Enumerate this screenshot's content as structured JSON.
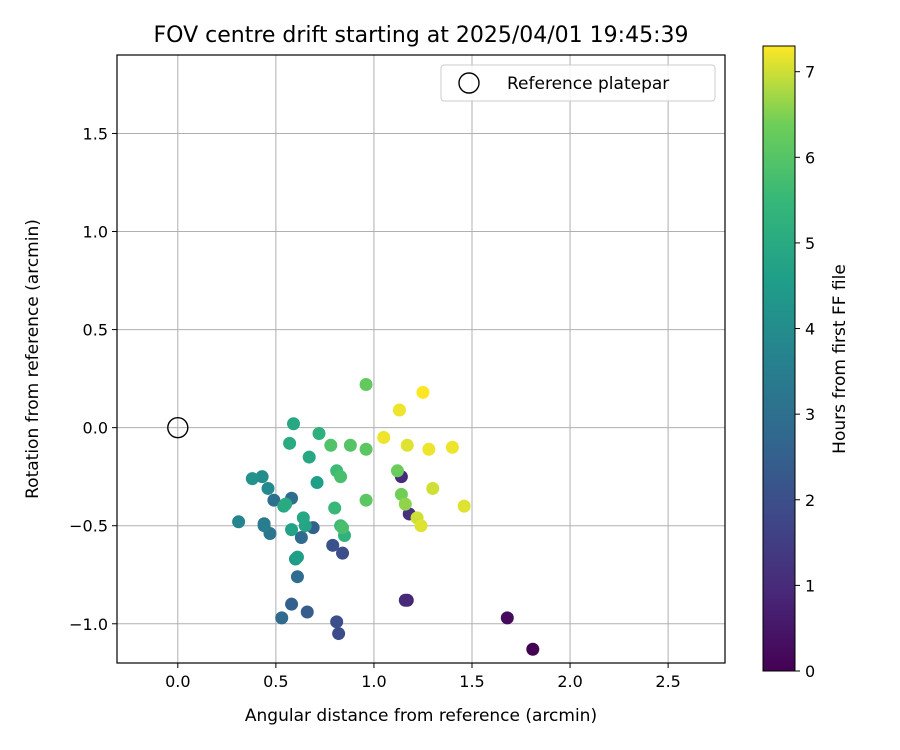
{
  "chart_data": {
    "type": "scatter",
    "title": "FOV centre drift starting at 2025/04/01 19:45:39",
    "xlabel": "Angular distance from reference (arcmin)",
    "ylabel": "Rotation from reference (arcmin)",
    "xlim": [
      -0.31,
      2.79
    ],
    "ylim": [
      -1.2,
      1.9
    ],
    "xticks": [
      0.0,
      0.5,
      1.0,
      1.5,
      2.0,
      2.5
    ],
    "xtick_labels": [
      "0.0",
      "0.5",
      "1.0",
      "1.5",
      "2.0",
      "2.5"
    ],
    "yticks": [
      -1.0,
      -0.5,
      0.0,
      0.5,
      1.0,
      1.5
    ],
    "ytick_labels": [
      "−1.0",
      "−0.5",
      "0.0",
      "0.5",
      "1.0",
      "1.5"
    ],
    "grid": true,
    "legend": {
      "placement": "top-right",
      "entries": [
        "Reference platepar"
      ]
    },
    "reference_point": {
      "x": 0.0,
      "y": 0.0
    },
    "colorbar": {
      "label": "Hours from first FF file",
      "colormap": "viridis",
      "range": [
        0,
        7.3
      ],
      "ticks": [
        0,
        1,
        2,
        3,
        4,
        5,
        6,
        7
      ],
      "tick_labels": [
        "0",
        "1",
        "2",
        "3",
        "4",
        "5",
        "6",
        "7"
      ]
    },
    "points": [
      {
        "x": 1.81,
        "y": -1.13,
        "hours": 0.0
      },
      {
        "x": 1.68,
        "y": -0.97,
        "hours": 0.2
      },
      {
        "x": 1.17,
        "y": -0.88,
        "hours": 0.8
      },
      {
        "x": 1.16,
        "y": -0.88,
        "hours": 1.0
      },
      {
        "x": 1.14,
        "y": -0.25,
        "hours": 1.0
      },
      {
        "x": 1.18,
        "y": -0.44,
        "hours": 1.1
      },
      {
        "x": 0.82,
        "y": -1.05,
        "hours": 1.9
      },
      {
        "x": 0.81,
        "y": -0.99,
        "hours": 2.0
      },
      {
        "x": 0.84,
        "y": -0.64,
        "hours": 2.0
      },
      {
        "x": 0.79,
        "y": -0.6,
        "hours": 2.1
      },
      {
        "x": 0.66,
        "y": -0.94,
        "hours": 2.4
      },
      {
        "x": 0.58,
        "y": -0.9,
        "hours": 2.5
      },
      {
        "x": 0.53,
        "y": -0.97,
        "hours": 2.8
      },
      {
        "x": 0.61,
        "y": -0.76,
        "hours": 2.9
      },
      {
        "x": 0.69,
        "y": -0.51,
        "hours": 2.5
      },
      {
        "x": 0.63,
        "y": -0.56,
        "hours": 2.8
      },
      {
        "x": 0.58,
        "y": -0.36,
        "hours": 2.9
      },
      {
        "x": 0.49,
        "y": -0.37,
        "hours": 3.0
      },
      {
        "x": 0.47,
        "y": -0.54,
        "hours": 3.2
      },
      {
        "x": 0.44,
        "y": -0.49,
        "hours": 3.3
      },
      {
        "x": 0.44,
        "y": -0.5,
        "hours": 3.5
      },
      {
        "x": 0.31,
        "y": -0.48,
        "hours": 3.7
      },
      {
        "x": 0.46,
        "y": -0.31,
        "hours": 3.9
      },
      {
        "x": 0.43,
        "y": -0.25,
        "hours": 4.0
      },
      {
        "x": 0.38,
        "y": -0.26,
        "hours": 4.2
      },
      {
        "x": 0.6,
        "y": -0.67,
        "hours": 4.4
      },
      {
        "x": 0.61,
        "y": -0.66,
        "hours": 4.6
      },
      {
        "x": 0.58,
        "y": -0.52,
        "hours": 4.7
      },
      {
        "x": 0.65,
        "y": -0.5,
        "hours": 4.8
      },
      {
        "x": 0.64,
        "y": -0.46,
        "hours": 4.9
      },
      {
        "x": 0.54,
        "y": -0.4,
        "hours": 4.9
      },
      {
        "x": 0.55,
        "y": -0.39,
        "hours": 5.0
      },
      {
        "x": 0.71,
        "y": -0.28,
        "hours": 4.6
      },
      {
        "x": 0.67,
        "y": -0.15,
        "hours": 4.9
      },
      {
        "x": 0.57,
        "y": -0.08,
        "hours": 5.0
      },
      {
        "x": 0.59,
        "y": 0.02,
        "hours": 4.9
      },
      {
        "x": 0.72,
        "y": -0.03,
        "hours": 5.2
      },
      {
        "x": 0.85,
        "y": -0.55,
        "hours": 5.3
      },
      {
        "x": 0.83,
        "y": -0.5,
        "hours": 5.6
      },
      {
        "x": 0.84,
        "y": -0.51,
        "hours": 5.8
      },
      {
        "x": 0.8,
        "y": -0.41,
        "hours": 5.5
      },
      {
        "x": 0.81,
        "y": -0.22,
        "hours": 5.6
      },
      {
        "x": 0.83,
        "y": -0.25,
        "hours": 5.8
      },
      {
        "x": 0.78,
        "y": -0.09,
        "hours": 5.9
      },
      {
        "x": 0.88,
        "y": -0.09,
        "hours": 6.0
      },
      {
        "x": 0.96,
        "y": -0.11,
        "hours": 6.1
      },
      {
        "x": 0.96,
        "y": -0.37,
        "hours": 6.1
      },
      {
        "x": 0.96,
        "y": 0.22,
        "hours": 6.2
      },
      {
        "x": 1.12,
        "y": -0.22,
        "hours": 6.3
      },
      {
        "x": 1.14,
        "y": -0.34,
        "hours": 6.4
      },
      {
        "x": 1.16,
        "y": -0.39,
        "hours": 6.6
      },
      {
        "x": 1.22,
        "y": -0.46,
        "hours": 7.0
      },
      {
        "x": 1.24,
        "y": -0.5,
        "hours": 7.1
      },
      {
        "x": 1.3,
        "y": -0.31,
        "hours": 7.0
      },
      {
        "x": 1.17,
        "y": -0.09,
        "hours": 7.1
      },
      {
        "x": 1.28,
        "y": -0.11,
        "hours": 7.2
      },
      {
        "x": 1.4,
        "y": -0.1,
        "hours": 7.2
      },
      {
        "x": 1.46,
        "y": -0.4,
        "hours": 7.1
      },
      {
        "x": 1.05,
        "y": -0.05,
        "hours": 7.2
      },
      {
        "x": 1.13,
        "y": 0.09,
        "hours": 7.2
      },
      {
        "x": 1.25,
        "y": 0.18,
        "hours": 7.3
      }
    ]
  }
}
